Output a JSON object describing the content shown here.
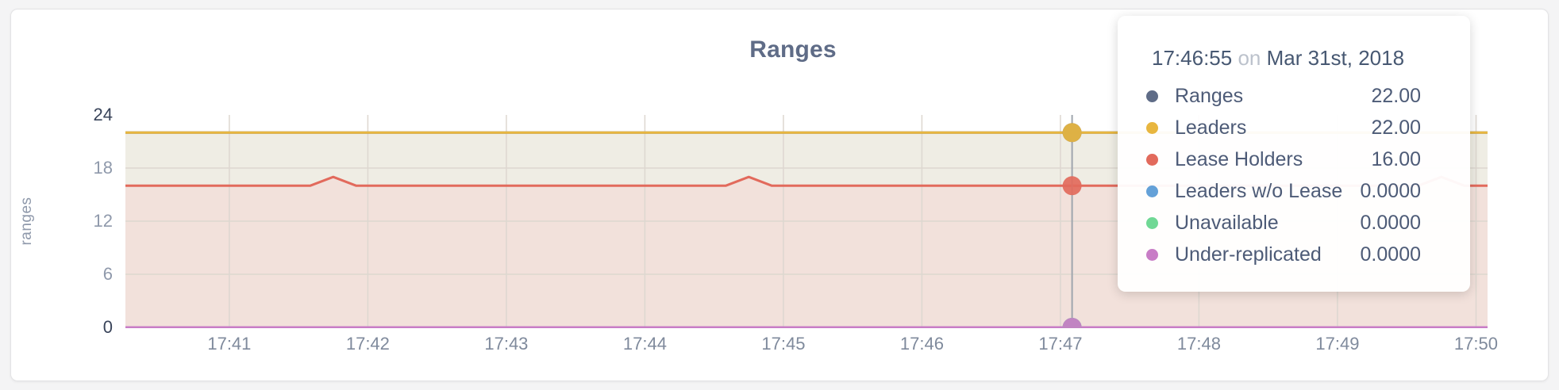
{
  "card": {
    "background": "#ffffff"
  },
  "title": "Ranges",
  "chart_data": {
    "type": "area",
    "title": "Ranges",
    "ylabel": "ranges",
    "xlabel": "",
    "ylim": [
      0,
      24
    ],
    "yticks": [
      0,
      6,
      12,
      18,
      24
    ],
    "emphasized_yticks": [
      0,
      24
    ],
    "xticks": [
      "17:41",
      "17:42",
      "17:43",
      "17:44",
      "17:45",
      "17:46",
      "17:47",
      "17:48",
      "17:49",
      "17:50"
    ],
    "x_domain": [
      "17:40:15",
      "17:50:05"
    ],
    "grid": true,
    "legend_position": "tooltip-only",
    "series": [
      {
        "name": "Ranges",
        "color": "#5F6C87",
        "points": [
          [
            "17:40:15",
            22
          ],
          [
            "17:50:05",
            22
          ]
        ]
      },
      {
        "name": "Leaders",
        "color": "#E8B63F",
        "points": [
          [
            "17:40:15",
            22
          ],
          [
            "17:50:05",
            22
          ]
        ]
      },
      {
        "name": "Lease Holders",
        "color": "#E26A5C",
        "points": [
          [
            "17:40:15",
            16
          ],
          [
            "17:41:35",
            16
          ],
          [
            "17:41:45",
            17
          ],
          [
            "17:41:55",
            16
          ],
          [
            "17:44:35",
            16
          ],
          [
            "17:44:45",
            17
          ],
          [
            "17:44:55",
            16
          ],
          [
            "17:49:35",
            16
          ],
          [
            "17:49:45",
            17
          ],
          [
            "17:49:55",
            16
          ],
          [
            "17:50:05",
            16
          ]
        ]
      },
      {
        "name": "Leaders w/o Lease",
        "color": "#64A1D8",
        "points": [
          [
            "17:40:15",
            0
          ],
          [
            "17:50:05",
            0
          ]
        ]
      },
      {
        "name": "Unavailable",
        "color": "#70D895",
        "points": [
          [
            "17:40:15",
            0
          ],
          [
            "17:50:05",
            0
          ]
        ]
      },
      {
        "name": "Under-replicated",
        "color": "#C87DC6",
        "points": [
          [
            "17:40:15",
            0
          ],
          [
            "17:50:05",
            0
          ]
        ]
      }
    ],
    "fills": {
      "between_leaders_and_leaseholders": "#EFEDE4",
      "below_leaseholders": "#F2E1DB",
      "above_leaders": "#FFFFFF"
    },
    "gridline_color": "#DDD7D0",
    "hover_marker": {
      "x_fraction": 0.695,
      "line_color": "#9FA5AD",
      "dot_radius": 12
    }
  },
  "tooltip": {
    "time": "17:46:55",
    "separator": "on",
    "date": "Mar 31st, 2018",
    "rows": [
      {
        "label": "Ranges",
        "value": "22.00",
        "color": "#5F6C87"
      },
      {
        "label": "Leaders",
        "value": "22.00",
        "color": "#E8B63F"
      },
      {
        "label": "Lease Holders",
        "value": "16.00",
        "color": "#E26A5C"
      },
      {
        "label": "Leaders w/o Lease",
        "value": "0.0000",
        "color": "#64A1D8"
      },
      {
        "label": "Unavailable",
        "value": "0.0000",
        "color": "#70D895"
      },
      {
        "label": "Under-replicated",
        "value": "0.0000",
        "color": "#C87DC6"
      }
    ]
  }
}
